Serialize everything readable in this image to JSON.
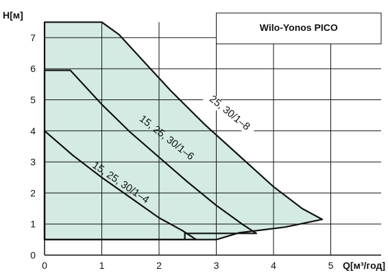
{
  "chart_data": {
    "type": "line",
    "title": "Wilo-Yonos PICO",
    "xlabel": "Q[м³/год]",
    "ylabel": "H[м]",
    "xlim": [
      0,
      5.9
    ],
    "ylim": [
      0,
      7.7
    ],
    "x_ticks": [
      "0",
      "1",
      "2",
      "3",
      "4",
      "5"
    ],
    "y_ticks": [
      "0",
      "1",
      "2",
      "3",
      "4",
      "5",
      "6",
      "7"
    ],
    "grid": true,
    "legend_position": "top-right",
    "fill_color": "#d3ebe2",
    "line_color": "#111111",
    "series": [
      {
        "name": "25, 30/1–8",
        "points": [
          [
            0,
            7.5
          ],
          [
            1.0,
            7.5
          ],
          [
            1.3,
            7.1
          ],
          [
            1.7,
            6.3
          ],
          [
            2.2,
            5.3
          ],
          [
            2.8,
            4.2
          ],
          [
            3.4,
            3.2
          ],
          [
            4.0,
            2.2
          ],
          [
            4.5,
            1.5
          ],
          [
            4.85,
            1.15
          ],
          [
            4.2,
            0.9
          ],
          [
            3.4,
            0.72
          ],
          [
            3.0,
            0.5
          ],
          [
            0,
            0.5
          ]
        ]
      },
      {
        "name": "15, 25, 30/1–6",
        "points": [
          [
            0,
            5.95
          ],
          [
            0.45,
            5.95
          ],
          [
            1.0,
            4.85
          ],
          [
            1.5,
            3.95
          ],
          [
            2.0,
            3.15
          ],
          [
            2.5,
            2.35
          ],
          [
            3.0,
            1.6
          ],
          [
            3.45,
            1.0
          ],
          [
            3.7,
            0.7
          ],
          [
            2.45,
            0.7
          ],
          [
            2.45,
            0.5
          ],
          [
            0,
            0.5
          ]
        ]
      },
      {
        "name": "15, 25, 30/1–4",
        "points": [
          [
            0,
            4.0
          ],
          [
            0.5,
            3.2
          ],
          [
            1.0,
            2.5
          ],
          [
            1.5,
            1.85
          ],
          [
            2.0,
            1.2
          ],
          [
            2.4,
            0.8
          ],
          [
            2.65,
            0.5
          ],
          [
            0,
            0.5
          ]
        ]
      }
    ]
  }
}
